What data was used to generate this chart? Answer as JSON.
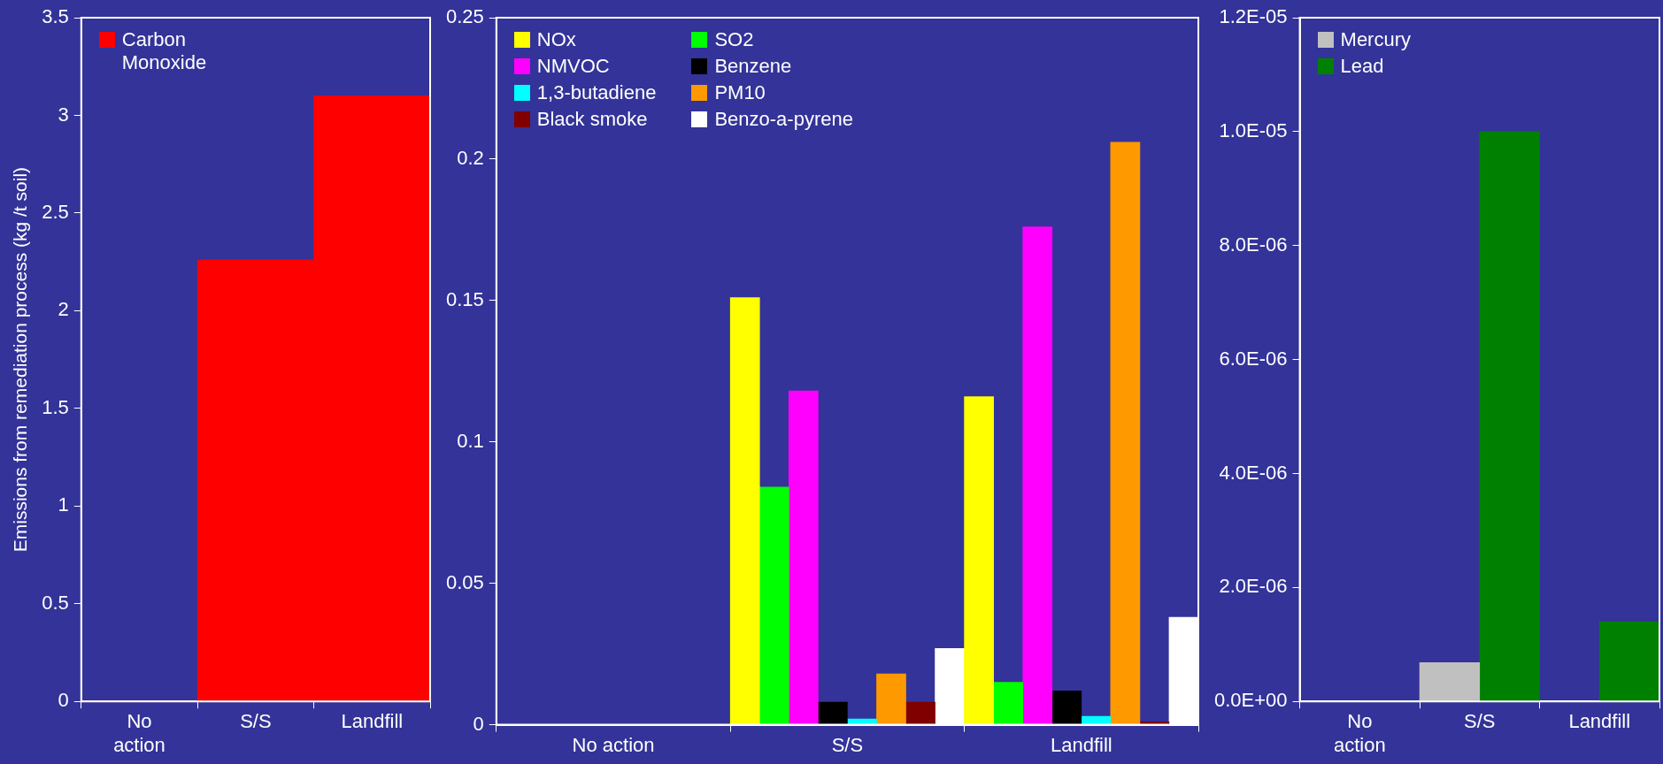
{
  "chart_data": [
    {
      "type": "bar",
      "ylabel": "Emissions from remediation process (kg /t soil)",
      "categories": [
        "No action",
        "S/S",
        "Landfill"
      ],
      "series": [
        {
          "name": "Carbon Monoxide",
          "color": "#ff0000",
          "values": [
            0,
            2.26,
            3.1
          ]
        }
      ],
      "ylim": [
        0,
        3.5
      ],
      "yticks": [
        0,
        0.5,
        1,
        1.5,
        2,
        2.5,
        3,
        3.5
      ],
      "grid": false,
      "legend": "top left"
    },
    {
      "type": "bar",
      "categories": [
        "No action",
        "S/S",
        "Landfill"
      ],
      "series": [
        {
          "name": "NOx",
          "color": "#ffff00",
          "values": [
            0,
            0.151,
            0.116
          ]
        },
        {
          "name": "SO2",
          "color": "#00ff00",
          "values": [
            0,
            0.084,
            0.015
          ]
        },
        {
          "name": "NMVOC",
          "color": "#ff00ff",
          "values": [
            0,
            0.118,
            0.176
          ]
        },
        {
          "name": "Benzene",
          "color": "#000000",
          "values": [
            0,
            0.008,
            0.012
          ]
        },
        {
          "name": "1,3-butadiene",
          "color": "#00ffff",
          "values": [
            0,
            0.002,
            0.003
          ]
        },
        {
          "name": "PM10",
          "color": "#ff9900",
          "values": [
            0,
            0.018,
            0.206
          ]
        },
        {
          "name": "Black smoke",
          "color": "#800000",
          "values": [
            0,
            0.008,
            0.001
          ]
        },
        {
          "name": "Benzo-a-pyrene",
          "color": "#ffffff",
          "values": [
            0,
            0.027,
            0.038
          ]
        }
      ],
      "ylim": [
        0,
        0.25
      ],
      "yticks": [
        0,
        0.05,
        0.1,
        0.15,
        0.2,
        0.25
      ],
      "grid": false,
      "legend": "top left"
    },
    {
      "type": "bar",
      "categories": [
        "No action",
        "S/S",
        "Landfill"
      ],
      "series": [
        {
          "name": "Mercury",
          "color": "#c0c0c0",
          "values": [
            0,
            6.8e-07,
            0
          ]
        },
        {
          "name": "Lead",
          "color": "#008000",
          "values": [
            0,
            1e-05,
            1.4e-06
          ]
        }
      ],
      "ylim": [
        0,
        1.2e-05
      ],
      "yticks": [
        {
          "value": 0,
          "label": "0.0E+00"
        },
        {
          "value": 2e-06,
          "label": "2.0E-06"
        },
        {
          "value": 4e-06,
          "label": "4.0E-06"
        },
        {
          "value": 6e-06,
          "label": "6.0E-06"
        },
        {
          "value": 8e-06,
          "label": "8.0E-06"
        },
        {
          "value": 1e-05,
          "label": "1.0E-05"
        },
        {
          "value": 1.2e-05,
          "label": "1.2E-05"
        }
      ],
      "grid": false,
      "legend": "top left"
    }
  ]
}
